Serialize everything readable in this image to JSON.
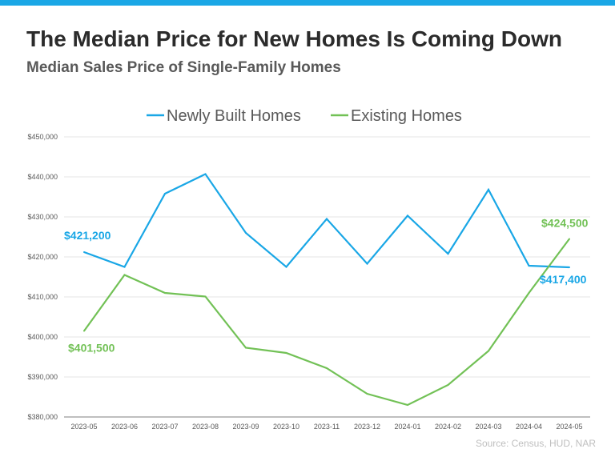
{
  "header": {
    "title": "The Median Price for New Homes Is Coming Down",
    "subtitle": "Median Sales Price of Single-Family Homes"
  },
  "source": "Source: Census, HUD, NAR",
  "colors": {
    "accent": "#1aa7e6",
    "newly_built": "#1aa7e6",
    "existing": "#72c156"
  },
  "chart_data": {
    "type": "line",
    "title": "The Median Price for New Homes Is Coming Down",
    "subtitle": "Median Sales Price of Single-Family Homes",
    "xlabel": "",
    "ylabel": "",
    "x": [
      "2023-05",
      "2023-06",
      "2023-07",
      "2023-08",
      "2023-09",
      "2023-10",
      "2023-11",
      "2023-12",
      "2024-01",
      "2024-02",
      "2024-03",
      "2024-04",
      "2024-05"
    ],
    "ylim": [
      380000,
      450000
    ],
    "yticks": [
      380000,
      390000,
      400000,
      410000,
      420000,
      430000,
      440000,
      450000
    ],
    "ytick_labels": [
      "$380,000",
      "$390,000",
      "$400,000",
      "$410,000",
      "$420,000",
      "$430,000",
      "$440,000",
      "$450,000"
    ],
    "grid": true,
    "legend_position": "top-center",
    "series": [
      {
        "name": "Newly Built Homes",
        "color": "#1aa7e6",
        "values": [
          421200,
          417500,
          435800,
          440700,
          426000,
          417500,
          429500,
          418300,
          430300,
          420800,
          436800,
          417800,
          417400
        ],
        "annotations": [
          {
            "index": 0,
            "text": "$421,200"
          },
          {
            "index": 12,
            "text": "$417,400"
          }
        ]
      },
      {
        "name": "Existing Homes",
        "color": "#72c156",
        "values": [
          401500,
          415500,
          411000,
          410100,
          397300,
          396000,
          392200,
          385800,
          383000,
          388000,
          396500,
          411000,
          424500
        ],
        "annotations": [
          {
            "index": 0,
            "text": "$401,500"
          },
          {
            "index": 12,
            "text": "$424,500"
          }
        ]
      }
    ]
  }
}
